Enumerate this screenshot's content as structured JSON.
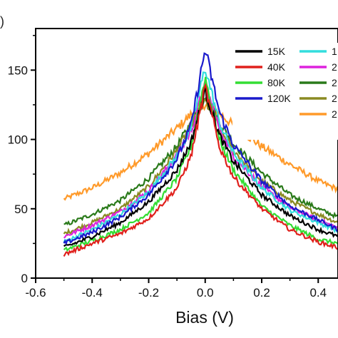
{
  "chart_data": {
    "type": "line",
    "title": "",
    "panel_mark": ")",
    "xlabel": "Bias (V)",
    "ylabel": "",
    "xlim": [
      -0.6,
      0.47
    ],
    "ylim": [
      0,
      180
    ],
    "xticks": [
      -0.6,
      -0.4,
      -0.2,
      0.0,
      0.2,
      0.4
    ],
    "xtick_labels": [
      "-0.6",
      "-0.4",
      "-0.2",
      "0.0",
      "0.2",
      "0.4"
    ],
    "yticks": [
      0,
      50,
      100,
      150
    ],
    "ytick_labels": [
      "0",
      "50",
      "100",
      "150"
    ],
    "grid": false,
    "legend_position": "top-right",
    "legend_columns": 2,
    "series": [
      {
        "name": "15K",
        "color": "#000000",
        "x": [
          -0.5,
          -0.4,
          -0.3,
          -0.2,
          -0.1,
          -0.05,
          0.0,
          0.05,
          0.1,
          0.2,
          0.3,
          0.4,
          0.47
        ],
        "y": [
          22,
          30,
          40,
          55,
          78,
          98,
          135,
          103,
          84,
          60,
          45,
          35,
          30
        ]
      },
      {
        "name": "40K",
        "color": "#e0201c",
        "x": [
          -0.5,
          -0.4,
          -0.3,
          -0.2,
          -0.1,
          -0.05,
          0.0,
          0.05,
          0.1,
          0.2,
          0.3,
          0.4,
          0.47
        ],
        "y": [
          17,
          25,
          32,
          43,
          65,
          88,
          138,
          95,
          73,
          50,
          35,
          26,
          22
        ]
      },
      {
        "name": "80K",
        "color": "#33dd33",
        "x": [
          -0.5,
          -0.4,
          -0.3,
          -0.2,
          -0.1,
          -0.05,
          0.0,
          0.05,
          0.1,
          0.2,
          0.3,
          0.4,
          0.47
        ],
        "y": [
          20,
          27,
          35,
          47,
          72,
          95,
          145,
          100,
          78,
          52,
          38,
          28,
          25
        ]
      },
      {
        "name": "120K",
        "color": "#1a1acc",
        "x": [
          -0.5,
          -0.4,
          -0.3,
          -0.2,
          -0.1,
          -0.05,
          0.0,
          0.05,
          0.1,
          0.2,
          0.3,
          0.4,
          0.47
        ],
        "y": [
          25,
          33,
          44,
          60,
          86,
          110,
          165,
          120,
          96,
          70,
          52,
          42,
          35
        ]
      },
      {
        "name": "1",
        "color": "#33dddd",
        "x": [
          -0.5,
          -0.4,
          -0.3,
          -0.2,
          -0.1,
          -0.05,
          0.0,
          0.05,
          0.1,
          0.2,
          0.3,
          0.4,
          0.47
        ],
        "y": [
          26,
          35,
          46,
          62,
          88,
          108,
          152,
          112,
          90,
          65,
          49,
          40,
          34
        ]
      },
      {
        "name": "2",
        "color": "#dd22dd",
        "x": [
          -0.5,
          -0.4,
          -0.3,
          -0.2,
          -0.1,
          -0.05,
          0.0,
          0.05,
          0.1,
          0.2,
          0.3,
          0.4,
          0.47
        ],
        "y": [
          30,
          38,
          48,
          63,
          88,
          106,
          140,
          108,
          88,
          66,
          51,
          42,
          36
        ]
      },
      {
        "name": "2",
        "color": "#2a7a1a",
        "x": [
          -0.5,
          -0.4,
          -0.3,
          -0.2,
          -0.1,
          -0.05,
          0.0,
          0.05,
          0.1,
          0.2,
          0.3,
          0.4,
          0.47
        ],
        "y": [
          38,
          46,
          56,
          72,
          95,
          112,
          132,
          112,
          97,
          76,
          60,
          50,
          44
        ]
      },
      {
        "name": "2",
        "color": "#8a8a22",
        "x": [
          -0.5,
          -0.4,
          -0.3,
          -0.2,
          -0.1,
          -0.05,
          0.0,
          0.05,
          0.1,
          0.2,
          0.3,
          0.4,
          0.47
        ],
        "y": [
          32,
          40,
          50,
          66,
          92,
          110,
          128,
          108,
          92,
          70,
          56,
          46,
          40
        ]
      },
      {
        "name": "2",
        "color": "#ff9a2a",
        "x": [
          -0.5,
          -0.4,
          -0.3,
          -0.2,
          -0.1,
          -0.05,
          0.0,
          0.05,
          0.1,
          0.2,
          0.3,
          0.4,
          0.47
        ],
        "y": [
          57,
          65,
          76,
          90,
          108,
          118,
          126,
          119,
          110,
          95,
          82,
          70,
          64
        ]
      }
    ]
  }
}
